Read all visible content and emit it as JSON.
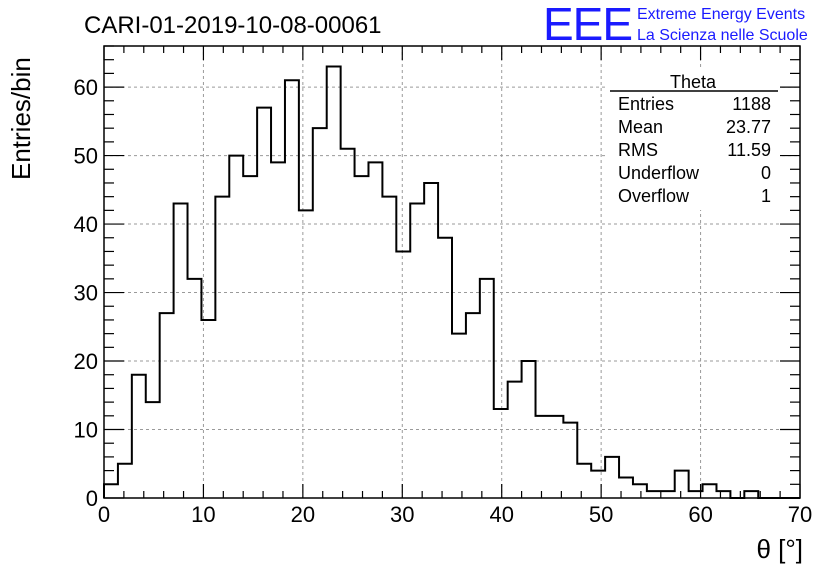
{
  "chart_data": {
    "type": "histogram",
    "title": "CARI-01-2019-10-08-00061",
    "xlabel": "θ [°]",
    "ylabel": "Entries/bin",
    "xlim": [
      0,
      70
    ],
    "ylim": [
      0,
      66
    ],
    "grid": true,
    "bin_width": 1.4,
    "x_ticks": [
      "0",
      "10",
      "20",
      "30",
      "40",
      "50",
      "60",
      "70"
    ],
    "y_ticks": [
      "0",
      "10",
      "20",
      "30",
      "40",
      "50",
      "60"
    ],
    "values": [
      2,
      5,
      18,
      14,
      27,
      43,
      32,
      26,
      44,
      50,
      47,
      57,
      49,
      61,
      42,
      54,
      63,
      51,
      47,
      49,
      44,
      36,
      43,
      46,
      38,
      24,
      27,
      32,
      13,
      17,
      20,
      12,
      12,
      11,
      5,
      4,
      6,
      3,
      2,
      1,
      1,
      4,
      1,
      2,
      1,
      0,
      1,
      0,
      0,
      0
    ],
    "stats": {
      "title": "Theta",
      "rows": [
        {
          "label": "Entries",
          "value": "1188"
        },
        {
          "label": "Mean",
          "value": "23.77"
        },
        {
          "label": "RMS",
          "value": "11.59"
        },
        {
          "label": "Underflow",
          "value": "0"
        },
        {
          "label": "Overflow",
          "value": "1"
        }
      ]
    }
  },
  "logo": {
    "mark": "EEE",
    "line1": "Extreme Energy Events",
    "line2": "La Scienza nelle Scuole"
  },
  "colors": {
    "histogram": "#000000",
    "logo": "#1a1aff",
    "grid": "#9a9a9a"
  }
}
